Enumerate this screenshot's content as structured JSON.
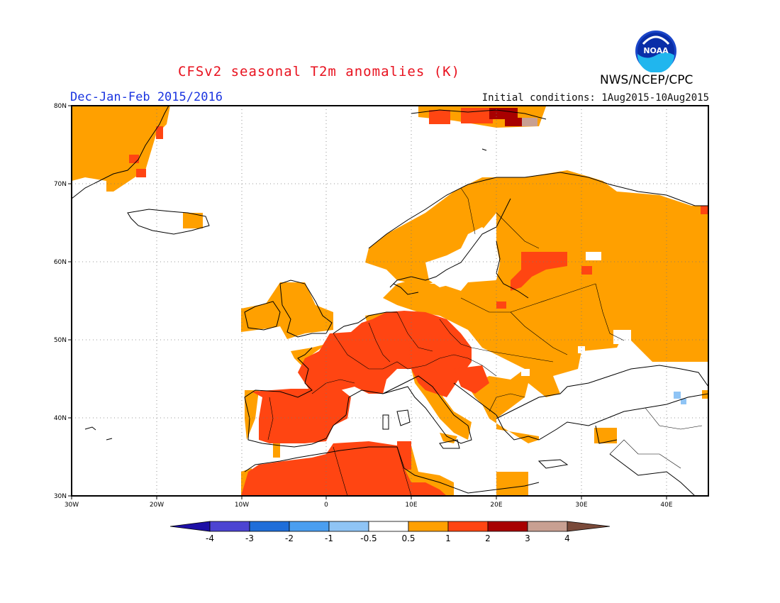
{
  "header": {
    "title": "CFSv2 seasonal T2m anomalies (K)",
    "season": "Dec-Jan-Feb 2015/2016",
    "initial_conditions": "Initial conditions: 1Aug2015-10Aug2015",
    "organization": "NWS/NCEP/CPC",
    "logo_text": "NOAA"
  },
  "map": {
    "lon_range": [
      -30,
      45
    ],
    "lat_range": [
      30,
      80
    ],
    "lon_ticks": [
      "30W",
      "20W",
      "10W",
      "0",
      "10E",
      "20E",
      "30E",
      "40E"
    ],
    "lat_ticks": [
      "80N",
      "70N",
      "60N",
      "50N",
      "40N",
      "30N"
    ],
    "grid_style": "dotted"
  },
  "legend": {
    "labels": [
      "-4",
      "-3",
      "-2",
      "-1",
      "-0.5",
      "0.5",
      "1",
      "2",
      "3",
      "4"
    ],
    "colors": [
      "#1e10a6",
      "#4c44d2",
      "#1f6ed9",
      "#4a9ef0",
      "#8fc4f5",
      "#ffffff",
      "#ffa000",
      "#ff4512",
      "#a80000",
      "#c8a092",
      "#7a4a3a"
    ]
  },
  "colors": {
    "anomaly_0_5_1": "#ffa000",
    "anomaly_1_2": "#ff4512",
    "anomaly_2_3": "#a80000",
    "anomaly_3_4": "#c8a092",
    "anomaly_neg_0_5_neg_1": "#8fc4f5"
  }
}
